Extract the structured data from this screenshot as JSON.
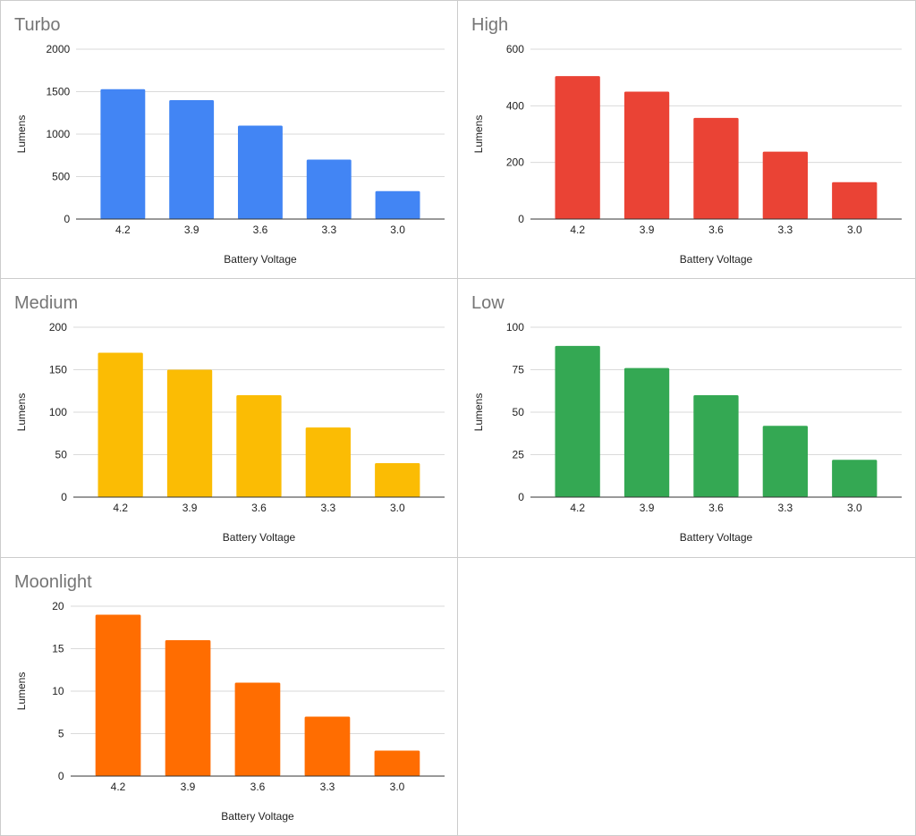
{
  "chart_data": [
    {
      "type": "bar",
      "title": "Turbo",
      "xlabel": "Battery Voltage",
      "ylabel": "Lumens",
      "categories": [
        "4.2",
        "3.9",
        "3.6",
        "3.3",
        "3.0"
      ],
      "values": [
        1530,
        1400,
        1100,
        700,
        330
      ],
      "ylim": [
        0,
        2000
      ],
      "yticks": [
        0,
        500,
        1000,
        1500,
        2000
      ],
      "color": "#4285F4",
      "grid": true,
      "legend": "none"
    },
    {
      "type": "bar",
      "title": "High",
      "xlabel": "Battery Voltage",
      "ylabel": "Lumens",
      "categories": [
        "4.2",
        "3.9",
        "3.6",
        "3.3",
        "3.0"
      ],
      "values": [
        505,
        450,
        357,
        238,
        130
      ],
      "ylim": [
        0,
        600
      ],
      "yticks": [
        0,
        200,
        400,
        600
      ],
      "color": "#EA4335",
      "grid": true,
      "legend": "none"
    },
    {
      "type": "bar",
      "title": "Medium",
      "xlabel": "Battery Voltage",
      "ylabel": "Lumens",
      "categories": [
        "4.2",
        "3.9",
        "3.6",
        "3.3",
        "3.0"
      ],
      "values": [
        170,
        150,
        120,
        82,
        40
      ],
      "ylim": [
        0,
        200
      ],
      "yticks": [
        0,
        50,
        100,
        150,
        200
      ],
      "color": "#FBBC04",
      "grid": true,
      "legend": "none"
    },
    {
      "type": "bar",
      "title": "Low",
      "xlabel": "Battery Voltage",
      "ylabel": "Lumens",
      "categories": [
        "4.2",
        "3.9",
        "3.6",
        "3.3",
        "3.0"
      ],
      "values": [
        89,
        76,
        60,
        42,
        22
      ],
      "ylim": [
        0,
        100
      ],
      "yticks": [
        0,
        25,
        50,
        75,
        100
      ],
      "color": "#34A853",
      "grid": true,
      "legend": "none"
    },
    {
      "type": "bar",
      "title": "Moonlight",
      "xlabel": "Battery Voltage",
      "ylabel": "Lumens",
      "categories": [
        "4.2",
        "3.9",
        "3.6",
        "3.3",
        "3.0"
      ],
      "values": [
        19,
        16,
        11,
        7,
        3
      ],
      "ylim": [
        0,
        20
      ],
      "yticks": [
        0,
        5,
        10,
        15,
        20
      ],
      "color": "#FF6D01",
      "grid": true,
      "legend": "none"
    }
  ]
}
